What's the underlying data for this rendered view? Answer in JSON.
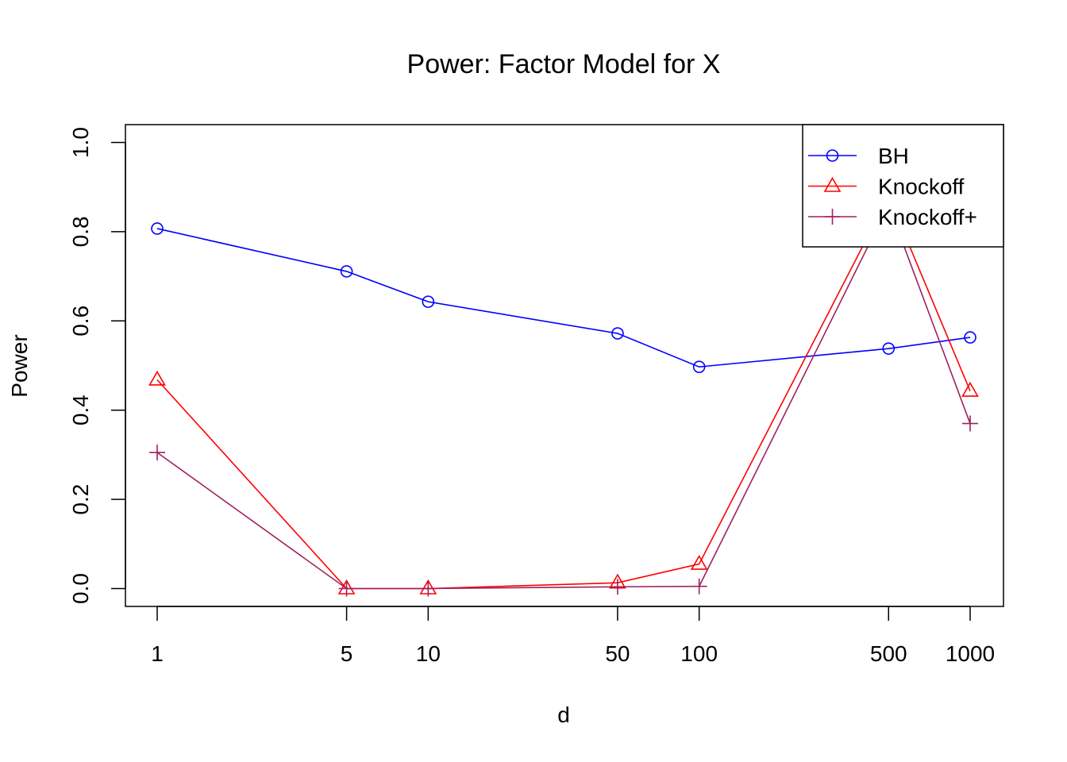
{
  "chart_data": {
    "type": "line",
    "title": "Power: Factor Model for X",
    "xlabel": "d",
    "ylabel": "Power",
    "x_scale": "log",
    "x": [
      1,
      5,
      10,
      50,
      100,
      500,
      1000
    ],
    "x_tick_labels": [
      "1",
      "5",
      "10",
      "50",
      "100",
      "500",
      "1000"
    ],
    "ylim": [
      -0.04,
      1.04
    ],
    "y_ticks": [
      0.0,
      0.2,
      0.4,
      0.6,
      0.8,
      1.0
    ],
    "y_tick_labels": [
      "0.0",
      "0.2",
      "0.4",
      "0.6",
      "0.8",
      "1.0"
    ],
    "grid": false,
    "legend_position": "top-right",
    "series": [
      {
        "name": "BH",
        "color": "#0000ff",
        "marker": "circle",
        "values": [
          0.807,
          0.711,
          0.643,
          0.572,
          0.497,
          0.538,
          0.563
        ]
      },
      {
        "name": "Knockoff",
        "color": "#ff0000",
        "marker": "triangle",
        "values": [
          0.468,
          0.0,
          0.0,
          0.013,
          0.055,
          0.88,
          0.443
        ]
      },
      {
        "name": "Knockoff+",
        "color": "#a0205f",
        "marker": "plus",
        "values": [
          0.305,
          0.0,
          0.0,
          0.004,
          0.005,
          0.86,
          0.37
        ]
      }
    ]
  }
}
